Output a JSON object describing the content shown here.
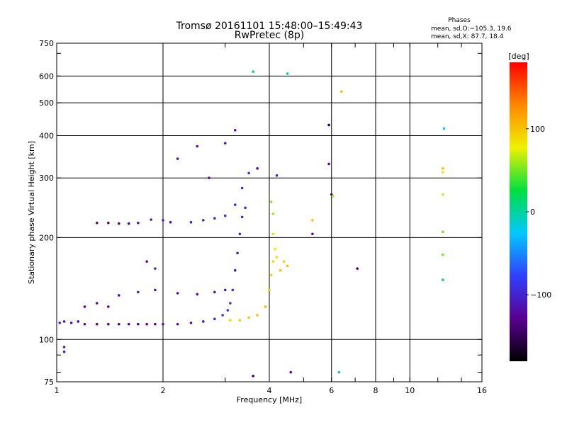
{
  "chart_data": {
    "type": "scatter",
    "title": "Tromsø 20161101 15:48:00–15:49:43",
    "subtitle": "RwPretec (8p)",
    "xlabel": "Frequency [MHz]",
    "ylabel": "Stationary phase Virtual Height [km]",
    "x_scale": "log",
    "y_scale": "log",
    "xlim": [
      1,
      16
    ],
    "ylim": [
      75,
      750
    ],
    "x_ticks": [
      "1",
      "2",
      "4",
      "6",
      "8",
      "10",
      "16"
    ],
    "y_ticks": [
      "750",
      "600",
      "500",
      "400",
      "300",
      "200",
      "100",
      "75"
    ],
    "grid": true,
    "legend": {
      "heading": "Phases",
      "line1": "mean, sd,O:−105.3, 19.6",
      "line2": "mean, sd,X:  87.7, 18.4"
    },
    "colorbar": {
      "label": "[deg]",
      "range": [
        -180,
        180
      ],
      "ticks": [
        "100",
        "0",
        "−100"
      ],
      "colors": [
        "#000000",
        "#5a0090",
        "#3040ff",
        "#00c8ff",
        "#00e040",
        "#f0f000",
        "#ff8800",
        "#ff0000"
      ]
    },
    "series": [
      {
        "points": [
          [
            1.02,
            112,
            -100
          ],
          [
            1.05,
            113,
            -110
          ],
          [
            1.1,
            112,
            -120
          ],
          [
            1.15,
            113,
            -120
          ],
          [
            1.2,
            111,
            -120
          ],
          [
            1.3,
            111,
            -130
          ],
          [
            1.4,
            111,
            -135
          ],
          [
            1.5,
            111,
            -135
          ],
          [
            1.6,
            111,
            -130
          ],
          [
            1.7,
            111,
            -130
          ],
          [
            1.8,
            111,
            -125
          ],
          [
            1.9,
            111,
            -125
          ],
          [
            2.0,
            111,
            -120
          ],
          [
            2.2,
            111,
            -120
          ],
          [
            2.4,
            112,
            -115
          ],
          [
            2.6,
            113,
            -110
          ],
          [
            2.8,
            115,
            -100
          ],
          [
            2.95,
            118,
            -90
          ],
          [
            3.05,
            122,
            -80
          ],
          [
            3.1,
            128,
            -90
          ],
          [
            3.15,
            140,
            -95
          ],
          [
            3.2,
            160,
            -105
          ],
          [
            3.25,
            180,
            -105
          ],
          [
            3.3,
            205,
            -100
          ],
          [
            3.35,
            230,
            -100
          ],
          [
            3.42,
            245,
            -95
          ],
          [
            3.1,
            114,
            90
          ],
          [
            3.3,
            114,
            95
          ],
          [
            3.5,
            116,
            100
          ],
          [
            3.7,
            118,
            100
          ],
          [
            3.9,
            125,
            105
          ],
          [
            4.0,
            140,
            100
          ],
          [
            4.05,
            155,
            95
          ],
          [
            4.1,
            170,
            90
          ],
          [
            4.2,
            175,
            85
          ],
          [
            4.4,
            170,
            95
          ],
          [
            4.5,
            165,
            100
          ],
          [
            4.3,
            160,
            100
          ],
          [
            4.15,
            185,
            80
          ],
          [
            4.1,
            205,
            70
          ],
          [
            4.1,
            235,
            60
          ],
          [
            4.05,
            255,
            55
          ],
          [
            1.3,
            221,
            -130
          ],
          [
            1.4,
            221,
            -135
          ],
          [
            1.5,
            220,
            -130
          ],
          [
            1.6,
            220,
            -125
          ],
          [
            1.7,
            221,
            -120
          ],
          [
            1.85,
            226,
            -100
          ],
          [
            2.0,
            225,
            -105
          ],
          [
            2.1,
            222,
            -110
          ],
          [
            2.4,
            222,
            -105
          ],
          [
            2.6,
            225,
            -100
          ],
          [
            2.8,
            228,
            -100
          ],
          [
            3.0,
            232,
            -95
          ],
          [
            3.2,
            250,
            -90
          ],
          [
            3.35,
            280,
            -95
          ],
          [
            3.5,
            310,
            -95
          ],
          [
            1.5,
            135,
            -110
          ],
          [
            1.7,
            138,
            -105
          ],
          [
            1.9,
            140,
            -110
          ],
          [
            2.2,
            137,
            -115
          ],
          [
            2.5,
            136,
            -120
          ],
          [
            2.8,
            138,
            -115
          ],
          [
            3.0,
            140,
            -110
          ],
          [
            1.2,
            125,
            -120
          ],
          [
            1.3,
            128,
            -115
          ],
          [
            1.4,
            125,
            -120
          ],
          [
            1.05,
            92,
            -110
          ],
          [
            1.05,
            95,
            -105
          ],
          [
            3.0,
            380,
            -120
          ],
          [
            3.2,
            415,
            -110
          ],
          [
            3.7,
            320,
            -120
          ],
          [
            4.2,
            305,
            -105
          ],
          [
            4.6,
            80,
            -120
          ],
          [
            5.3,
            205,
            -120
          ],
          [
            5.3,
            225,
            100
          ],
          [
            5.9,
            430,
            -150
          ],
          [
            5.9,
            330,
            -120
          ],
          [
            6.0,
            268,
            -140
          ],
          [
            6.05,
            265,
            60
          ],
          [
            6.3,
            80,
            0
          ],
          [
            6.4,
            540,
            100
          ],
          [
            7.1,
            162,
            -150
          ],
          [
            2.2,
            342,
            -120
          ],
          [
            2.5,
            372,
            -120
          ],
          [
            2.7,
            300,
            -120
          ],
          [
            3.6,
            618,
            0
          ],
          [
            4.5,
            610,
            0
          ],
          [
            12.5,
            420,
            -20
          ],
          [
            12.4,
            320,
            100
          ],
          [
            12.4,
            312,
            80
          ],
          [
            12.4,
            268,
            70
          ],
          [
            12.4,
            208,
            50
          ],
          [
            12.4,
            178,
            50
          ],
          [
            12.4,
            150,
            20
          ],
          [
            1.8,
            170,
            -120
          ],
          [
            1.9,
            162,
            -100
          ],
          [
            3.6,
            78,
            -140
          ]
        ]
      }
    ]
  }
}
